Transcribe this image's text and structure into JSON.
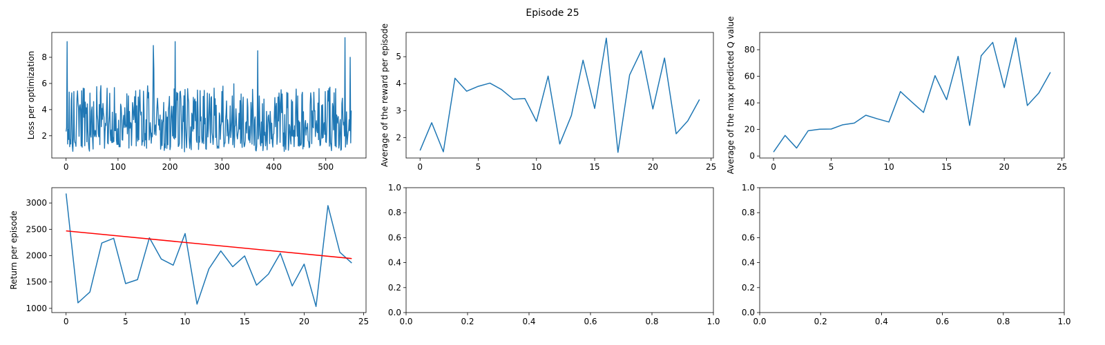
{
  "figure": {
    "suptitle": "Episode 25"
  },
  "chart_data": [
    {
      "id": "loss",
      "type": "line",
      "title": "",
      "xlabel": "",
      "ylabel": "Loss per optimization",
      "xlim": [
        -27.5,
        577.5
      ],
      "ylim": [
        0.3,
        9.9
      ],
      "xticks": [
        0,
        100,
        200,
        300,
        400,
        500
      ],
      "yticks": [
        2,
        4,
        6,
        8
      ],
      "series": [
        {
          "color": "#1f77b4",
          "generator": "noise",
          "count": 550,
          "seed": 7,
          "min": 0.75,
          "max": 9.5,
          "peaks": [
            [
              2,
              9.2
            ],
            [
              168,
              8.9
            ],
            [
              210,
              9.2
            ],
            [
              369,
              8.5
            ],
            [
              537,
              9.5
            ],
            [
              547,
              8.0
            ]
          ]
        }
      ]
    },
    {
      "id": "reward",
      "type": "line",
      "title": "",
      "xlabel": "",
      "ylabel": "Average of the reward per episode",
      "xlim": [
        -1.2,
        25.2
      ],
      "ylim": [
        1.24,
        5.9
      ],
      "xticks": [
        0,
        5,
        10,
        15,
        20,
        25
      ],
      "yticks": [
        2,
        3,
        4,
        5
      ],
      "series": [
        {
          "color": "#1f77b4",
          "x": [
            0,
            1,
            2,
            3,
            4,
            5,
            6,
            7,
            8,
            9,
            10,
            11,
            12,
            13,
            14,
            15,
            16,
            17,
            18,
            19,
            20,
            21,
            22,
            23,
            24
          ],
          "y": [
            1.52,
            2.55,
            1.47,
            4.2,
            3.72,
            3.9,
            4.02,
            3.78,
            3.42,
            3.45,
            2.6,
            4.28,
            1.76,
            2.82,
            4.87,
            3.08,
            5.69,
            1.45,
            4.32,
            5.22,
            3.06,
            4.95,
            2.14,
            2.62,
            3.41
          ]
        }
      ]
    },
    {
      "id": "qvalue",
      "type": "line",
      "title": "",
      "xlabel": "",
      "ylabel": "Average of the max predicted Q value",
      "xlim": [
        -1.2,
        25.2
      ],
      "ylim": [
        -1.5,
        93
      ],
      "xticks": [
        0,
        5,
        10,
        15,
        20,
        25
      ],
      "yticks": [
        0,
        20,
        40,
        60,
        80
      ],
      "series": [
        {
          "color": "#1f77b4",
          "x": [
            0,
            1,
            2,
            3,
            4,
            5,
            6,
            7,
            8,
            9,
            10,
            11,
            12,
            13,
            14,
            15,
            16,
            17,
            18,
            19,
            20,
            21,
            22,
            23,
            24
          ],
          "y": [
            3,
            15.5,
            6,
            19,
            20.2,
            20.3,
            23.5,
            24.8,
            30.7,
            28,
            25.6,
            48.5,
            40.5,
            32.8,
            60.5,
            42.4,
            75,
            23,
            75.5,
            85.5,
            51.5,
            89,
            38,
            47.5,
            63
          ]
        }
      ]
    },
    {
      "id": "return",
      "type": "line",
      "title": "",
      "xlabel": "",
      "ylabel": "Return per episode",
      "xlim": [
        -1.2,
        25.2
      ],
      "ylim": [
        920,
        3290
      ],
      "xticks": [
        0,
        5,
        10,
        15,
        20,
        25
      ],
      "yticks": [
        1000,
        1500,
        2000,
        2500,
        3000
      ],
      "series": [
        {
          "color": "#1f77b4",
          "x": [
            0,
            1,
            2,
            3,
            4,
            5,
            6,
            7,
            8,
            9,
            10,
            11,
            12,
            13,
            14,
            15,
            16,
            17,
            18,
            19,
            20,
            21,
            22,
            23,
            24
          ],
          "y": [
            3180,
            1105,
            1310,
            2240,
            2330,
            1470,
            1545,
            2340,
            1935,
            1820,
            2420,
            1080,
            1750,
            2090,
            1790,
            1995,
            1440,
            1650,
            2045,
            1425,
            1840,
            1035,
            2950,
            2065,
            1860
          ]
        },
        {
          "color": "#ff0000",
          "x": [
            0,
            24
          ],
          "y": [
            2470,
            1945
          ]
        }
      ]
    },
    {
      "id": "empty1",
      "type": "line",
      "title": "",
      "xlabel": "",
      "ylabel": "",
      "xlim": [
        0,
        1
      ],
      "ylim": [
        0,
        1
      ],
      "xticks": [
        0,
        0.2,
        0.4,
        0.6,
        0.8,
        1.0
      ],
      "yticks": [
        0,
        0.2,
        0.4,
        0.6,
        0.8,
        1.0
      ],
      "series": []
    },
    {
      "id": "empty2",
      "type": "line",
      "title": "",
      "xlabel": "",
      "ylabel": "",
      "xlim": [
        0,
        1
      ],
      "ylim": [
        0,
        1
      ],
      "xticks": [
        0,
        0.2,
        0.4,
        0.6,
        0.8,
        1.0
      ],
      "yticks": [
        0,
        0.2,
        0.4,
        0.6,
        0.8,
        1.0
      ],
      "series": []
    }
  ]
}
